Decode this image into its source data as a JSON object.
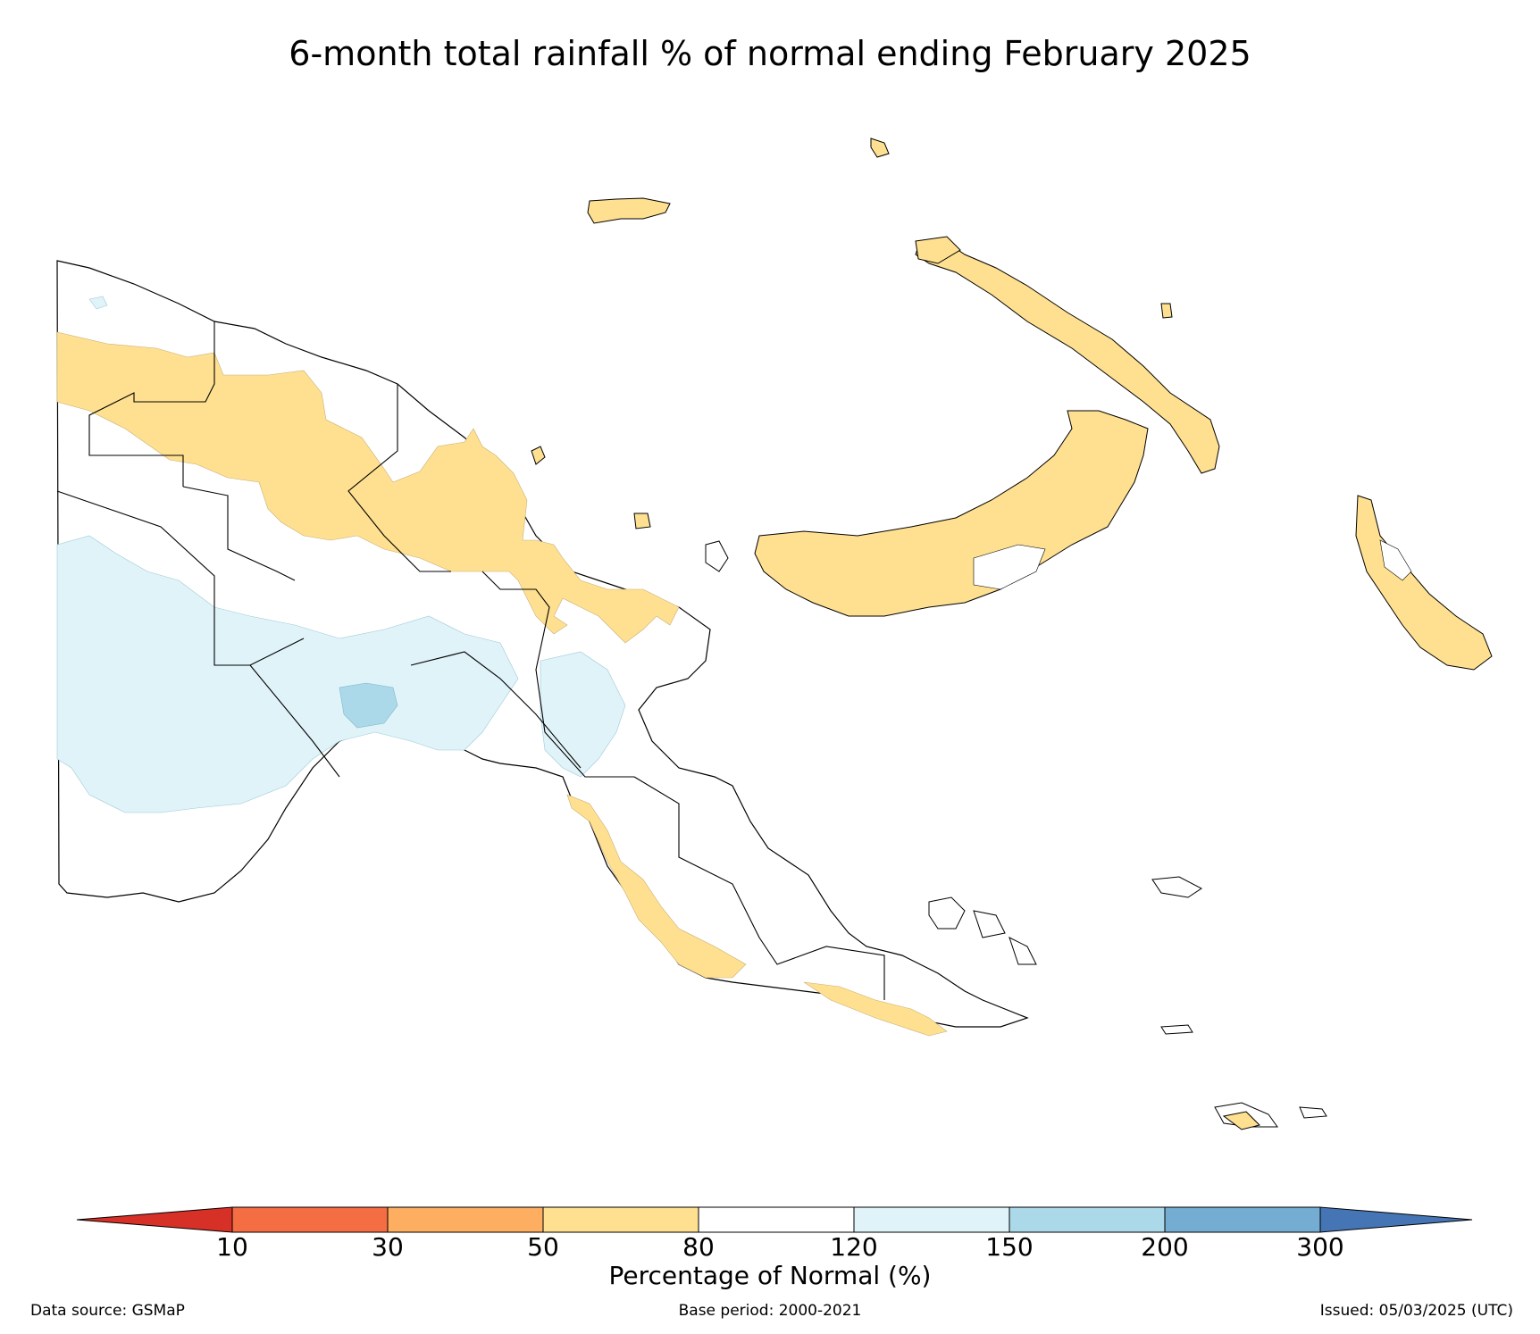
{
  "title": "6-month total rainfall % of normal ending February 2025",
  "colors": {
    "lt10": "#d73027",
    "c10_30": "#f46d43",
    "c30_50": "#fdae61",
    "c50_80": "#fee090",
    "c80_120": "#ffffff",
    "c120_150": "#e0f3f8",
    "c150_200": "#abd9e9",
    "c200_300": "#74add1",
    "gt300": "#4575b4",
    "border": "#000000"
  },
  "legend": {
    "ticks": [
      "10",
      "30",
      "50",
      "80",
      "120",
      "150",
      "200",
      "300"
    ],
    "title": "Percentage of Normal (%)"
  },
  "footer": {
    "source": "Data source: GSMaP",
    "base": "Base period: 2000-2021",
    "issued": "Issued: 05/03/2025 (UTC)"
  },
  "map_categories": [
    "50-80",
    "80-120",
    "120-150",
    "150-200"
  ]
}
